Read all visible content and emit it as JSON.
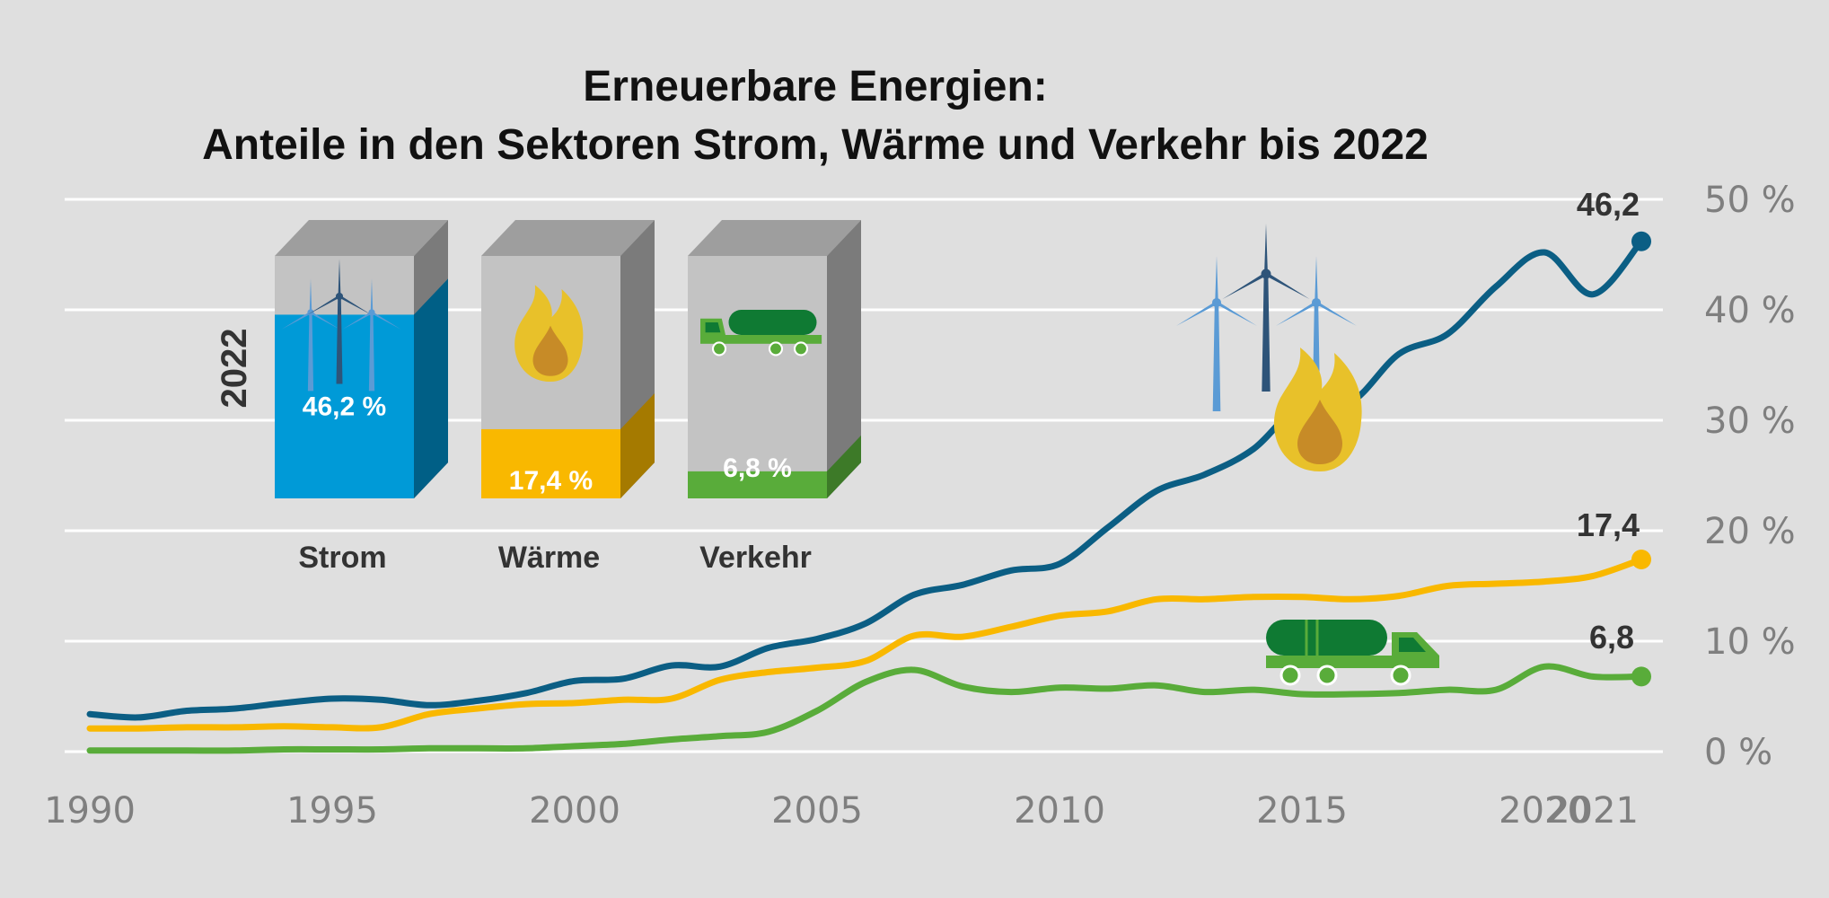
{
  "chart_data": {
    "type": "line",
    "title": "Erneuerbare Energien:",
    "subtitle": "Anteile in den Sektoren Strom, Wärme und Verkehr bis 2022",
    "x": [
      1990,
      1991,
      1992,
      1993,
      1994,
      1995,
      1996,
      1997,
      1998,
      1999,
      2000,
      2001,
      2002,
      2003,
      2004,
      2005,
      2006,
      2007,
      2008,
      2009,
      2010,
      2011,
      2012,
      2013,
      2014,
      2015,
      2016,
      2017,
      2018,
      2019,
      2020,
      2021,
      2022
    ],
    "x_ticks": [
      "1990",
      "1995",
      "2000",
      "2005",
      "2010",
      "2015",
      "2020",
      "2021"
    ],
    "y_ticks": [
      "0 %",
      "10 %",
      "20 %",
      "30 %",
      "40 %",
      "50 %"
    ],
    "ylim": [
      0,
      50
    ],
    "grid": true,
    "series": [
      {
        "name": "Strom",
        "color": "#0b5e84",
        "end_label": "46,2",
        "values": [
          3.4,
          3.1,
          3.7,
          3.9,
          4.4,
          4.8,
          4.7,
          4.2,
          4.6,
          5.3,
          6.4,
          6.6,
          7.8,
          7.7,
          9.4,
          10.2,
          11.6,
          14.2,
          15.1,
          16.4,
          17.0,
          20.3,
          23.6,
          25.1,
          27.4,
          31.5,
          31.6,
          36.0,
          37.8,
          42.1,
          45.2,
          41.4,
          46.2
        ]
      },
      {
        "name": "Wärme",
        "color": "#f9b800",
        "end_label": "17,4",
        "values": [
          2.1,
          2.1,
          2.2,
          2.2,
          2.3,
          2.2,
          2.2,
          3.4,
          3.9,
          4.3,
          4.4,
          4.7,
          4.8,
          6.5,
          7.2,
          7.6,
          8.2,
          10.5,
          10.4,
          11.3,
          12.3,
          12.7,
          13.8,
          13.8,
          14.0,
          14.0,
          13.8,
          14.1,
          15.0,
          15.2,
          15.4,
          15.9,
          17.4
        ]
      },
      {
        "name": "Verkehr",
        "color": "#59ac3a",
        "end_label": "6,8",
        "values": [
          0.1,
          0.1,
          0.1,
          0.1,
          0.2,
          0.2,
          0.2,
          0.3,
          0.3,
          0.3,
          0.5,
          0.7,
          1.1,
          1.4,
          1.8,
          3.7,
          6.3,
          7.4,
          5.9,
          5.4,
          5.8,
          5.7,
          6.0,
          5.4,
          5.6,
          5.2,
          5.2,
          5.3,
          5.6,
          5.6,
          7.7,
          6.8,
          6.8
        ]
      }
    ],
    "inset": {
      "year_label": "2022",
      "bars": [
        {
          "sector": "Strom",
          "value": 46.2,
          "label": "46,2 %",
          "front_color": "#009ad7",
          "side_color": "#005f86",
          "icon": "wind-turbines-icon"
        },
        {
          "sector": "Wärme",
          "value": 17.4,
          "label": "17,4 %",
          "front_color": "#f9b800",
          "side_color": "#a57a00",
          "icon": "flame-icon"
        },
        {
          "sector": "Verkehr",
          "value": 6.8,
          "label": "6,8 %",
          "front_color": "#59ac3a",
          "side_color": "#3d7a28",
          "icon": "tank-truck-icon"
        }
      ]
    }
  }
}
